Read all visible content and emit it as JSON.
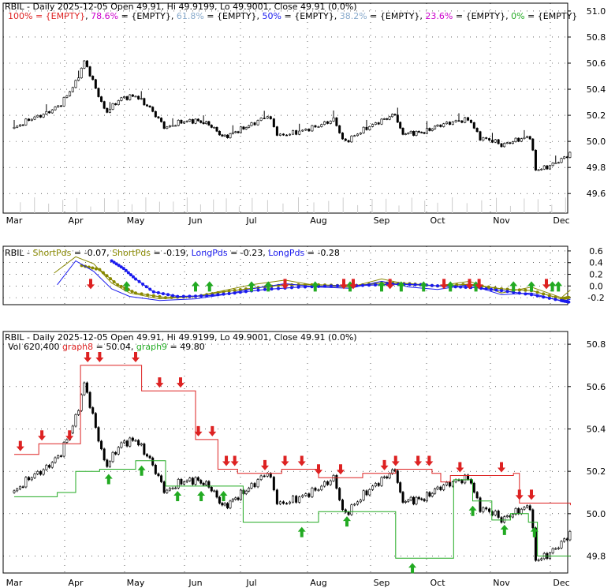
{
  "colors": {
    "up_arrow": "#22aa22",
    "down_arrow": "#dd2222",
    "red_line": "#dd2222",
    "green_line": "#22aa22",
    "blue_series": "#1a1aee",
    "olive_series": "#888800",
    "grid": "#000000"
  },
  "panels": [
    {
      "id": "price-top",
      "header_segments": [
        {
          "text": "RBIL - Daily 2025-12-05 Open 49.91, Hi 49.9199, Lo 49.9001, Close 49.91 (0.0%)",
          "color": "#000000"
        }
      ],
      "legend_segments": [
        {
          "text": "100% = {EMPTY}",
          "color": "#dd2222"
        },
        {
          "text": ", ",
          "color": "#000000"
        },
        {
          "text": "78.6%",
          "color": "#cc00cc"
        },
        {
          "text": " = {EMPTY}",
          "color": "#000000"
        },
        {
          "text": ", ",
          "color": "#000000"
        },
        {
          "text": "61.8%",
          "color": "#88aacc"
        },
        {
          "text": " = {EMPTY}",
          "color": "#000000"
        },
        {
          "text": ", ",
          "color": "#000000"
        },
        {
          "text": "50%",
          "color": "#1a1aee"
        },
        {
          "text": " = {EMPTY}",
          "color": "#000000"
        },
        {
          "text": ", ",
          "color": "#000000"
        },
        {
          "text": "38.2%",
          "color": "#88aacc"
        },
        {
          "text": " = {EMPTY}",
          "color": "#000000"
        },
        {
          "text": ", ",
          "color": "#000000"
        },
        {
          "text": "23.6%",
          "color": "#cc00cc"
        },
        {
          "text": " = {EMPTY}",
          "color": "#000000"
        },
        {
          "text": ", ",
          "color": "#000000"
        },
        {
          "text": "0%",
          "color": "#22aa22"
        },
        {
          "text": " = {EMPTY}",
          "color": "#000000"
        }
      ],
      "y_ticks": [
        "51.0",
        "50.8",
        "50.6",
        "50.4",
        "50.2",
        "50.0",
        "49.8",
        "49.6"
      ]
    },
    {
      "id": "oscillator",
      "header_segments": [
        {
          "text": "RBIL - ",
          "color": "#000000"
        },
        {
          "text": "ShortPds",
          "color": "#888800"
        },
        {
          "text": " = -0.07, ",
          "color": "#000000"
        },
        {
          "text": "ShortPds",
          "color": "#888800"
        },
        {
          "text": " = -0.19, ",
          "color": "#000000"
        },
        {
          "text": "LongPds",
          "color": "#1a1aee"
        },
        {
          "text": " = -0.23, ",
          "color": "#000000"
        },
        {
          "text": "LongPds",
          "color": "#1a1aee"
        },
        {
          "text": " = -0.28",
          "color": "#000000"
        }
      ],
      "y_ticks": [
        "0.6",
        "0.4",
        "0.2",
        "0.0",
        "-0.2"
      ]
    },
    {
      "id": "price-bottom",
      "header_segments": [
        {
          "text": "RBIL - Daily 2025-12-05 Open 49.91, Hi 49.9199, Lo 49.9001, Close 49.91 (0.0%)",
          "color": "#000000"
        }
      ],
      "legend_segments": [
        {
          "text": "Vol 620,400",
          "color": "#000000"
        },
        {
          "text": " ",
          "color": "#000000"
        },
        {
          "text": "graph8",
          "color": "#dd2222"
        },
        {
          "text": " = 50.04, ",
          "color": "#000000"
        },
        {
          "text": "graph9",
          "color": "#22aa22"
        },
        {
          "text": " = 49.80",
          "color": "#000000"
        }
      ],
      "y_ticks": [
        "50.8",
        "50.6",
        "50.4",
        "50.2",
        "50.0",
        "49.8"
      ]
    }
  ],
  "x_axis_labels": [
    "Mar",
    "Apr",
    "May",
    "Jun",
    "Jul",
    "Aug",
    "Sep",
    "Oct",
    "Nov",
    "Dec"
  ],
  "chart_data": [
    {
      "type": "candlestick",
      "title": "RBIL - Daily 2025-12-05 Open 49.91, Hi 49.9199, Lo 49.9001, Close 49.91 (0.0%)",
      "ylim": [
        49.45,
        51.06
      ],
      "x": [
        "Mar",
        "Apr",
        "May",
        "Jun",
        "Jul",
        "Aug",
        "Sep",
        "Oct",
        "Nov",
        "Dec"
      ],
      "close_path": [
        {
          "m": 0.0,
          "v": 50.1
        },
        {
          "m": 0.25,
          "v": 50.17
        },
        {
          "m": 0.5,
          "v": 50.21
        },
        {
          "m": 0.75,
          "v": 50.28
        },
        {
          "m": 1.0,
          "v": 50.45
        },
        {
          "m": 1.15,
          "v": 50.62
        },
        {
          "m": 1.25,
          "v": 50.5
        },
        {
          "m": 1.5,
          "v": 50.22
        },
        {
          "m": 1.75,
          "v": 50.33
        },
        {
          "m": 2.0,
          "v": 50.35
        },
        {
          "m": 2.25,
          "v": 50.25
        },
        {
          "m": 2.5,
          "v": 50.1
        },
        {
          "m": 2.75,
          "v": 50.15
        },
        {
          "m": 3.0,
          "v": 50.16
        },
        {
          "m": 3.25,
          "v": 50.13
        },
        {
          "m": 3.5,
          "v": 50.03
        },
        {
          "m": 3.75,
          "v": 50.08
        },
        {
          "m": 4.0,
          "v": 50.13
        },
        {
          "m": 4.25,
          "v": 50.2
        },
        {
          "m": 4.4,
          "v": 50.04
        },
        {
          "m": 4.75,
          "v": 50.08
        },
        {
          "m": 5.0,
          "v": 50.12
        },
        {
          "m": 5.25,
          "v": 50.17
        },
        {
          "m": 5.4,
          "v": 49.99
        },
        {
          "m": 5.75,
          "v": 50.1
        },
        {
          "m": 6.0,
          "v": 50.16
        },
        {
          "m": 6.25,
          "v": 50.21
        },
        {
          "m": 6.35,
          "v": 50.06
        },
        {
          "m": 6.75,
          "v": 50.07
        },
        {
          "m": 7.0,
          "v": 50.12
        },
        {
          "m": 7.25,
          "v": 50.15
        },
        {
          "m": 7.5,
          "v": 50.17
        },
        {
          "m": 7.65,
          "v": 50.03
        },
        {
          "m": 7.9,
          "v": 50.0
        },
        {
          "m": 8.0,
          "v": 49.97
        },
        {
          "m": 8.25,
          "v": 50.01
        },
        {
          "m": 8.5,
          "v": 50.04
        },
        {
          "m": 8.55,
          "v": 49.78
        },
        {
          "m": 8.75,
          "v": 49.8
        },
        {
          "m": 9.0,
          "v": 49.86
        },
        {
          "m": 9.15,
          "v": 49.91
        }
      ]
    },
    {
      "type": "line",
      "title": "RBIL - ShortPds = -0.07, ShortPds = -0.19, LongPds = -0.23, LongPds = -0.28",
      "ylim": [
        -0.32,
        0.68
      ],
      "x": [
        "Mar",
        "Apr",
        "May",
        "Jun",
        "Jul",
        "Aug",
        "Sep",
        "Oct",
        "Nov",
        "Dec"
      ],
      "series": [
        {
          "name": "ShortPds",
          "color": "#888800",
          "values": [
            {
              "m": 0.65,
              "v": 0.22
            },
            {
              "m": 1.0,
              "v": 0.5
            },
            {
              "m": 1.3,
              "v": 0.38
            },
            {
              "m": 1.6,
              "v": 0.05
            },
            {
              "m": 1.9,
              "v": -0.12
            },
            {
              "m": 2.4,
              "v": -0.22
            },
            {
              "m": 3.0,
              "v": -0.18
            },
            {
              "m": 3.5,
              "v": -0.08
            },
            {
              "m": 4.0,
              "v": 0.02
            },
            {
              "m": 4.5,
              "v": 0.1
            },
            {
              "m": 5.0,
              "v": 0.0
            },
            {
              "m": 5.5,
              "v": -0.02
            },
            {
              "m": 6.0,
              "v": 0.12
            },
            {
              "m": 6.5,
              "v": 0.02
            },
            {
              "m": 7.0,
              "v": 0.0
            },
            {
              "m": 7.5,
              "v": 0.08
            },
            {
              "m": 8.0,
              "v": -0.12
            },
            {
              "m": 8.5,
              "v": -0.02
            },
            {
              "m": 9.0,
              "v": -0.2
            },
            {
              "m": 9.15,
              "v": -0.07
            }
          ]
        },
        {
          "name": "ShortPds",
          "color": "#888800",
          "values": [
            {
              "m": 1.1,
              "v": 0.35
            },
            {
              "m": 1.4,
              "v": 0.28
            },
            {
              "m": 1.7,
              "v": 0.02
            },
            {
              "m": 2.0,
              "v": -0.12
            },
            {
              "m": 2.5,
              "v": -0.2
            },
            {
              "m": 3.0,
              "v": -0.18
            },
            {
              "m": 3.5,
              "v": -0.1
            },
            {
              "m": 4.0,
              "v": -0.04
            },
            {
              "m": 4.5,
              "v": 0.02
            },
            {
              "m": 5.0,
              "v": 0.02
            },
            {
              "m": 5.5,
              "v": 0.0
            },
            {
              "m": 6.0,
              "v": 0.05
            },
            {
              "m": 6.5,
              "v": 0.04
            },
            {
              "m": 7.0,
              "v": 0.0
            },
            {
              "m": 7.5,
              "v": 0.03
            },
            {
              "m": 8.0,
              "v": -0.05
            },
            {
              "m": 8.5,
              "v": -0.08
            },
            {
              "m": 9.0,
              "v": -0.22
            },
            {
              "m": 9.15,
              "v": -0.19
            }
          ]
        },
        {
          "name": "LongPds",
          "color": "#1a1aee",
          "values": [
            {
              "m": 0.7,
              "v": 0.02
            },
            {
              "m": 1.0,
              "v": 0.43
            },
            {
              "m": 1.3,
              "v": 0.25
            },
            {
              "m": 1.6,
              "v": -0.05
            },
            {
              "m": 1.9,
              "v": -0.18
            },
            {
              "m": 2.4,
              "v": -0.25
            },
            {
              "m": 3.0,
              "v": -0.22
            },
            {
              "m": 3.5,
              "v": -0.15
            },
            {
              "m": 4.0,
              "v": -0.05
            },
            {
              "m": 4.5,
              "v": 0.04
            },
            {
              "m": 5.0,
              "v": -0.02
            },
            {
              "m": 5.5,
              "v": -0.04
            },
            {
              "m": 6.0,
              "v": 0.08
            },
            {
              "m": 6.5,
              "v": -0.02
            },
            {
              "m": 7.0,
              "v": -0.06
            },
            {
              "m": 7.5,
              "v": 0.02
            },
            {
              "m": 8.0,
              "v": -0.15
            },
            {
              "m": 8.5,
              "v": -0.12
            },
            {
              "m": 9.0,
              "v": -0.26
            },
            {
              "m": 9.15,
              "v": -0.23
            }
          ]
        },
        {
          "name": "LongPds",
          "color": "#1a1aee",
          "values": [
            {
              "m": 1.6,
              "v": 0.43
            },
            {
              "m": 1.8,
              "v": 0.3
            },
            {
              "m": 2.0,
              "v": 0.12
            },
            {
              "m": 2.3,
              "v": -0.1
            },
            {
              "m": 2.7,
              "v": -0.18
            },
            {
              "m": 3.2,
              "v": -0.17
            },
            {
              "m": 3.7,
              "v": -0.12
            },
            {
              "m": 4.2,
              "v": -0.06
            },
            {
              "m": 4.7,
              "v": -0.02
            },
            {
              "m": 5.2,
              "v": 0.0
            },
            {
              "m": 5.7,
              "v": 0.01
            },
            {
              "m": 6.2,
              "v": 0.03
            },
            {
              "m": 6.7,
              "v": 0.02
            },
            {
              "m": 7.2,
              "v": -0.01
            },
            {
              "m": 7.6,
              "v": -0.03
            },
            {
              "m": 8.0,
              "v": -0.08
            },
            {
              "m": 8.5,
              "v": -0.15
            },
            {
              "m": 9.0,
              "v": -0.25
            },
            {
              "m": 9.15,
              "v": -0.28
            }
          ]
        }
      ],
      "up_arrows_month": [
        1.85,
        3.0,
        3.25,
        4.0,
        4.25,
        4.95,
        5.5,
        6.0,
        6.35,
        6.75,
        7.2,
        7.6,
        8.2,
        8.5,
        8.85,
        8.95
      ],
      "down_arrows_month": [
        1.25,
        4.5,
        5.4,
        5.55,
        6.15,
        7.1,
        7.5,
        7.65,
        8.75
      ]
    },
    {
      "type": "candlestick",
      "title": "RBIL - Daily 2025-12-05 Open 49.91, Hi 49.9199, Lo 49.9001, Close 49.91 (0.0%)",
      "ylim": [
        49.72,
        50.86
      ],
      "x": [
        "Mar",
        "Apr",
        "May",
        "Jun",
        "Jul",
        "Aug",
        "Sep",
        "Oct",
        "Nov",
        "Dec"
      ],
      "series": [
        {
          "name": "graph8",
          "color": "#dd2222",
          "last": 50.04,
          "steps": [
            {
              "m": 0.0,
              "v": 50.28
            },
            {
              "m": 0.4,
              "v": 50.33
            },
            {
              "m": 1.0,
              "v": 50.33
            },
            {
              "m": 1.08,
              "v": 50.7
            },
            {
              "m": 2.1,
              "v": 50.7
            },
            {
              "m": 2.1,
              "v": 50.58
            },
            {
              "m": 2.85,
              "v": 50.58
            },
            {
              "m": 3.0,
              "v": 50.35
            },
            {
              "m": 3.4,
              "v": 50.21
            },
            {
              "m": 3.75,
              "v": 50.19
            },
            {
              "m": 4.45,
              "v": 50.21
            },
            {
              "m": 5.0,
              "v": 50.17
            },
            {
              "m": 5.7,
              "v": 50.19
            },
            {
              "m": 6.25,
              "v": 50.21
            },
            {
              "m": 6.9,
              "v": 50.19
            },
            {
              "m": 7.05,
              "v": 50.15
            },
            {
              "m": 7.2,
              "v": 50.18
            },
            {
              "m": 7.6,
              "v": 50.18
            },
            {
              "m": 8.2,
              "v": 50.19
            },
            {
              "m": 8.3,
              "v": 50.05
            },
            {
              "m": 9.15,
              "v": 50.04
            }
          ]
        },
        {
          "name": "graph9",
          "color": "#22aa22",
          "last": 49.8,
          "steps": [
            {
              "m": 0.0,
              "v": 50.08
            },
            {
              "m": 0.7,
              "v": 50.1
            },
            {
              "m": 1.0,
              "v": 50.2
            },
            {
              "m": 1.4,
              "v": 50.21
            },
            {
              "m": 2.0,
              "v": 50.25
            },
            {
              "m": 2.5,
              "v": 50.25
            },
            {
              "m": 2.5,
              "v": 50.13
            },
            {
              "m": 3.5,
              "v": 50.13
            },
            {
              "m": 3.85,
              "v": 49.96
            },
            {
              "m": 4.75,
              "v": 49.96
            },
            {
              "m": 5.0,
              "v": 50.01
            },
            {
              "m": 6.2,
              "v": 50.01
            },
            {
              "m": 6.25,
              "v": 49.79
            },
            {
              "m": 7.2,
              "v": 49.79
            },
            {
              "m": 7.25,
              "v": 50.16
            },
            {
              "m": 7.45,
              "v": 50.16
            },
            {
              "m": 7.55,
              "v": 50.06
            },
            {
              "m": 7.85,
              "v": 50.06
            },
            {
              "m": 7.85,
              "v": 49.97
            },
            {
              "m": 8.15,
              "v": 50.0
            },
            {
              "m": 8.45,
              "v": 49.96
            },
            {
              "m": 8.6,
              "v": 49.8
            },
            {
              "m": 9.15,
              "v": 49.8
            }
          ]
        }
      ],
      "up_arrows_month": [
        1.55,
        2.1,
        2.7,
        3.1,
        3.5,
        4.75,
        5.45,
        6.55,
        7.55,
        8.05,
        8.55
      ],
      "down_arrows_month": [
        0.1,
        0.45,
        0.9,
        1.2,
        1.4,
        2.0,
        2.4,
        2.75,
        3.05,
        3.3,
        3.55,
        3.7,
        4.2,
        4.5,
        4.75,
        5.0,
        5.35,
        6.05,
        6.25,
        6.65,
        6.85,
        7.35,
        8.0,
        8.3,
        8.5
      ]
    }
  ]
}
